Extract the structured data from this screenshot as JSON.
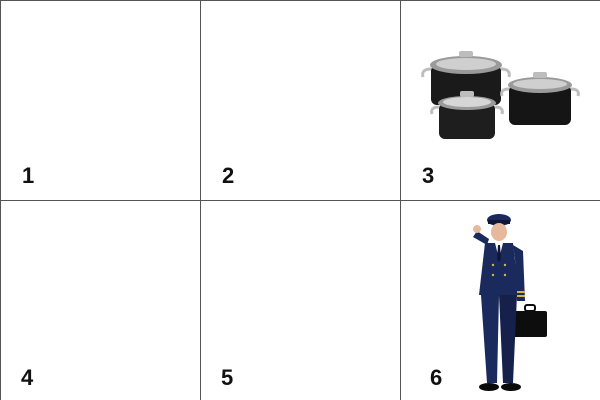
{
  "cells": [
    {
      "number": "1",
      "image": ""
    },
    {
      "number": "2",
      "image": ""
    },
    {
      "number": "3",
      "image": "cooking-pots"
    },
    {
      "number": "4",
      "image": ""
    },
    {
      "number": "5",
      "image": ""
    },
    {
      "number": "6",
      "image": "pilot"
    }
  ],
  "colors": {
    "grid_line": "#555555",
    "number": "#111111",
    "pot_body": "#1a1a1a",
    "pilot_uniform": "#1b2a5c"
  }
}
